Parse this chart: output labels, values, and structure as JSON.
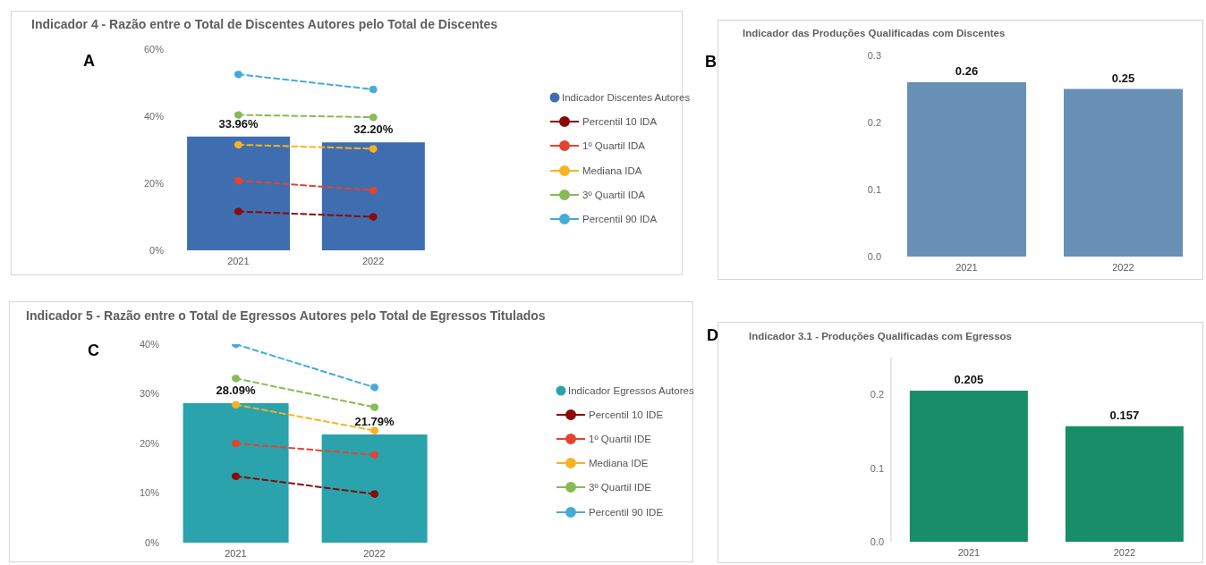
{
  "chart_data": [
    {
      "type": "bar",
      "title": "Indicador 4 - Razão entre o Total de Discentes Autores pelo Total de Discentes",
      "categories": [
        "2021",
        "2022"
      ],
      "series": [
        {
          "name": "Indicador Discentes Autores",
          "type": "bar",
          "color": "#3f6eb0",
          "values": [
            33.96,
            32.2
          ],
          "value_labels": [
            "33.96%",
            "32.20%"
          ]
        },
        {
          "name": "Percentil 10 IDA",
          "type": "line",
          "color": "#8b0a0a",
          "values": [
            11.6,
            10.0
          ]
        },
        {
          "name": "1º Quartil IDA",
          "type": "line",
          "color": "#e2452f",
          "values": [
            20.8,
            17.9
          ]
        },
        {
          "name": "Mediana IDA",
          "type": "line",
          "color": "#f6b323",
          "values": [
            31.5,
            30.3
          ]
        },
        {
          "name": "3º Quartil IDA",
          "type": "line",
          "color": "#88bb55",
          "values": [
            40.4,
            39.7
          ]
        },
        {
          "name": "Percentil 90 IDA",
          "type": "line",
          "color": "#45acd8",
          "values": [
            52.5,
            48.0
          ]
        }
      ],
      "ylim": [
        0,
        60
      ],
      "yticks": [
        {
          "value": 0,
          "label": "0%"
        },
        {
          "value": 20,
          "label": "20%"
        },
        {
          "value": 40,
          "label": "40%"
        },
        {
          "value": 60,
          "label": "60%"
        }
      ],
      "legend": "right",
      "marker": "circle",
      "line_style": "dashed",
      "annotations": [
        "A"
      ]
    },
    {
      "type": "bar",
      "title": "Indicador das Produções Qualificadas com Discentes",
      "categories": [
        "2021",
        "2022"
      ],
      "values": [
        0.26,
        0.25
      ],
      "color": "#6890b5",
      "data_labels": true,
      "ylim": [
        0,
        0.3
      ],
      "yticks": [
        {
          "value": 0,
          "label": "0.0"
        },
        0.1,
        0.2,
        0.3
      ],
      "annotations": [
        "B"
      ]
    },
    {
      "type": "bar",
      "title": "Indicador 5 - Razão entre o Total de Egressos Autores pelo Total de Egressos Titulados",
      "categories": [
        "2021",
        "2022"
      ],
      "series": [
        {
          "name": "Indicador Egressos Autores",
          "type": "bar",
          "color": "#2aa3ad",
          "values": [
            28.09,
            21.79
          ],
          "value_labels": [
            "28.09%",
            "21.79%"
          ]
        },
        {
          "name": "Percentil 10 IDE",
          "type": "line",
          "color": "#8b0a0a",
          "values": [
            13.4,
            9.8
          ]
        },
        {
          "name": "1º Quartil IDE",
          "type": "line",
          "color": "#e2452f",
          "values": [
            20.0,
            17.7
          ]
        },
        {
          "name": "Mediana IDE",
          "type": "line",
          "color": "#f6b323",
          "values": [
            27.8,
            22.6
          ]
        },
        {
          "name": "3º Quartil IDE",
          "type": "line",
          "color": "#88bb55",
          "values": [
            33.1,
            27.3
          ]
        },
        {
          "name": "Percentil 90 IDE",
          "type": "line",
          "color": "#45acd8",
          "values": [
            40.0,
            31.3
          ]
        }
      ],
      "ylim": [
        0,
        40
      ],
      "yticks": [
        {
          "value": 0,
          "label": "0%"
        },
        {
          "value": 10,
          "label": "10%"
        },
        {
          "value": 20,
          "label": "20%"
        },
        {
          "value": 30,
          "label": "30%"
        },
        {
          "value": 40,
          "label": "40%"
        }
      ],
      "legend": "right",
      "marker": "circle",
      "line_style": "dashed",
      "annotations": [
        "C"
      ]
    },
    {
      "type": "bar",
      "title": "Indicador 3.1 - Produções Qualificadas com Egressos",
      "categories": [
        "2021",
        "2022"
      ],
      "values": [
        0.205,
        0.157
      ],
      "color": "#178e67",
      "data_labels": true,
      "ylim": [
        0,
        0.25
      ],
      "yticks": [
        {
          "value": 0,
          "label": "0.0"
        },
        0.1,
        0.2
      ],
      "annotations": [
        "D"
      ]
    }
  ]
}
